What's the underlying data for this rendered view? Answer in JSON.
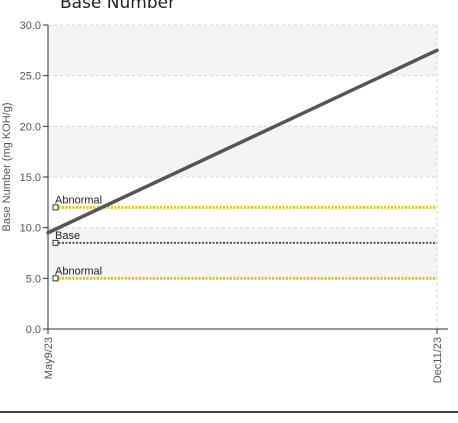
{
  "chart_data": {
    "type": "line",
    "title": "Base Number",
    "ylabel": "Base Number (mg KOH/g)",
    "xlabel": "",
    "x": [
      "May9/23",
      "Dec11/23"
    ],
    "ylim": [
      0,
      30
    ],
    "yticks": [
      "0.0",
      "5.0",
      "10.0",
      "15.0",
      "20.0",
      "25.0",
      "30.0"
    ],
    "grid": true,
    "series": [
      {
        "values": [
          9.5,
          27.5
        ],
        "color": "#555555"
      }
    ],
    "reference_lines": [
      {
        "label": "Abnormal",
        "value": 12.0,
        "color": "#f2c200"
      },
      {
        "label": "Base",
        "value": 8.5,
        "color": "#555555"
      },
      {
        "label": "Abnormal",
        "value": 5.0,
        "color": "#f2c200"
      }
    ]
  }
}
